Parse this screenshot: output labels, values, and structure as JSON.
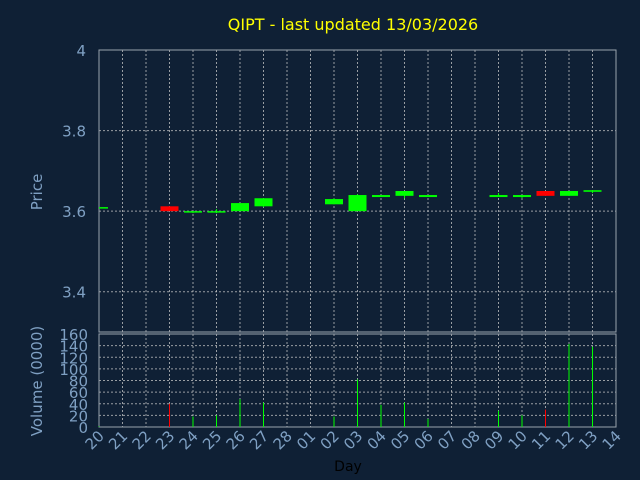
{
  "chart_data": [
    {
      "type": "candlestick",
      "title": "QIPT - last updated 13/03/2026",
      "ylabel": "Price",
      "ylim": [
        3.3,
        4.0
      ],
      "yticks": [
        "4",
        "3.8",
        "3.6",
        "3.4"
      ],
      "ytick_values": [
        4.0,
        3.8,
        3.6,
        3.4
      ],
      "grid": true,
      "colors": {
        "up": "#00ff00",
        "down": "#ff0000",
        "title": "#ffff00",
        "axis_text": "#7fa0c3",
        "background": "#0f2035"
      },
      "candles": [
        {
          "day": "20",
          "open": 3.61,
          "close": 3.61,
          "high": 3.61,
          "low": 3.61
        },
        {
          "day": "23",
          "open": 3.612,
          "close": 3.6,
          "high": 3.612,
          "low": 3.6
        },
        {
          "day": "24",
          "open": 3.598,
          "close": 3.6,
          "high": 3.6,
          "low": 3.595
        },
        {
          "day": "25",
          "open": 3.598,
          "close": 3.6,
          "high": 3.605,
          "low": 3.595
        },
        {
          "day": "26",
          "open": 3.6,
          "close": 3.62,
          "high": 3.62,
          "low": 3.6
        },
        {
          "day": "27",
          "open": 3.612,
          "close": 3.632,
          "high": 3.632,
          "low": 3.61
        },
        {
          "day": "02",
          "open": 3.617,
          "close": 3.63,
          "high": 3.632,
          "low": 3.617
        },
        {
          "day": "03",
          "open": 3.6,
          "close": 3.64,
          "high": 3.642,
          "low": 3.6
        },
        {
          "day": "04",
          "open": 3.635,
          "close": 3.64,
          "high": 3.64,
          "low": 3.635
        },
        {
          "day": "05",
          "open": 3.638,
          "close": 3.65,
          "high": 3.65,
          "low": 3.632
        },
        {
          "day": "06",
          "open": 3.635,
          "close": 3.64,
          "high": 3.64,
          "low": 3.635
        },
        {
          "day": "09",
          "open": 3.635,
          "close": 3.64,
          "high": 3.645,
          "low": 3.635
        },
        {
          "day": "10",
          "open": 3.635,
          "close": 3.64,
          "high": 3.64,
          "low": 3.632
        },
        {
          "day": "11",
          "open": 3.65,
          "close": 3.638,
          "high": 3.65,
          "low": 3.638
        },
        {
          "day": "12",
          "open": 3.638,
          "close": 3.65,
          "high": 3.65,
          "low": 3.638
        },
        {
          "day": "13",
          "open": 3.648,
          "close": 3.652,
          "high": 3.652,
          "low": 3.645
        }
      ]
    },
    {
      "type": "bar",
      "ylabel": "Volume (0000)",
      "xlabel": "Day",
      "ylim": [
        0,
        160
      ],
      "yticks": [
        "160",
        "140",
        "120",
        "100",
        "80",
        "60",
        "40",
        "20",
        "0"
      ],
      "ytick_values": [
        160,
        140,
        120,
        100,
        80,
        60,
        40,
        20,
        0
      ],
      "categories": [
        "20",
        "21",
        "22",
        "23",
        "24",
        "25",
        "26",
        "27",
        "28",
        "01",
        "02",
        "03",
        "04",
        "05",
        "06",
        "07",
        "08",
        "09",
        "10",
        "11",
        "12",
        "13",
        "14"
      ],
      "bars": [
        {
          "day": "20",
          "value": 1,
          "direction": "up"
        },
        {
          "day": "23",
          "value": 40,
          "direction": "down"
        },
        {
          "day": "24",
          "value": 18,
          "direction": "up"
        },
        {
          "day": "25",
          "value": 20,
          "direction": "up"
        },
        {
          "day": "26",
          "value": 48,
          "direction": "up"
        },
        {
          "day": "27",
          "value": 42,
          "direction": "up"
        },
        {
          "day": "02",
          "value": 18,
          "direction": "up"
        },
        {
          "day": "03",
          "value": 82,
          "direction": "up"
        },
        {
          "day": "04",
          "value": 38,
          "direction": "up"
        },
        {
          "day": "05",
          "value": 42,
          "direction": "up"
        },
        {
          "day": "06",
          "value": 14,
          "direction": "up"
        },
        {
          "day": "09",
          "value": 28,
          "direction": "up"
        },
        {
          "day": "10",
          "value": 20,
          "direction": "up"
        },
        {
          "day": "11",
          "value": 30,
          "direction": "down"
        },
        {
          "day": "12",
          "value": 143,
          "direction": "up"
        },
        {
          "day": "13",
          "value": 138,
          "direction": "up"
        }
      ]
    }
  ]
}
